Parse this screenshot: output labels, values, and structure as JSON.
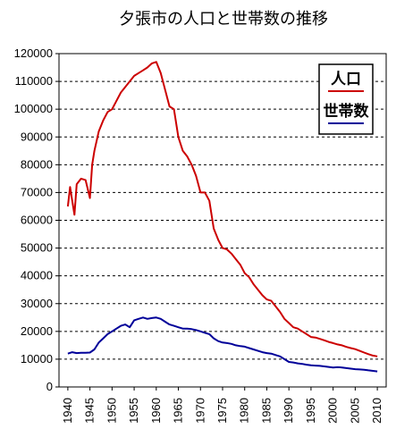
{
  "chart_data": {
    "type": "line",
    "title": "夕張市の人口と世帯数の推移",
    "xlabel": "",
    "ylabel": "",
    "xlim": [
      1938,
      2012
    ],
    "ylim": [
      0,
      120000
    ],
    "y_ticks": [
      "0",
      "10000",
      "20000",
      "30000",
      "40000",
      "50000",
      "60000",
      "70000",
      "80000",
      "90000",
      "100000",
      "110000",
      "120000"
    ],
    "y_tick_values": [
      0,
      10000,
      20000,
      30000,
      40000,
      50000,
      60000,
      70000,
      80000,
      90000,
      100000,
      110000,
      120000
    ],
    "x_ticks": [
      "1940",
      "1945",
      "1950",
      "1955",
      "1960",
      "1965",
      "1970",
      "1975",
      "1980",
      "1985",
      "1990",
      "1995",
      "2000",
      "2005",
      "2010"
    ],
    "x_tick_values": [
      1940,
      1945,
      1950,
      1955,
      1960,
      1965,
      1970,
      1975,
      1980,
      1985,
      1990,
      1995,
      2000,
      2005,
      2010
    ],
    "grid": "horizontal dashed",
    "legend_position": "top-right",
    "series": [
      {
        "name": "人口",
        "color": "#cc0000",
        "x": [
          1940,
          1940.5,
          1941,
          1941.5,
          1942,
          1943,
          1944,
          1944.7,
          1945,
          1945.5,
          1946,
          1947,
          1948,
          1949,
          1950,
          1951,
          1952,
          1953,
          1954,
          1955,
          1956,
          1957,
          1958,
          1959,
          1960,
          1961,
          1962,
          1963,
          1964,
          1965,
          1966,
          1967,
          1968,
          1969,
          1970,
          1971,
          1972,
          1973,
          1974,
          1975,
          1976,
          1977,
          1978,
          1979,
          1980,
          1981,
          1982,
          1983,
          1984,
          1985,
          1986,
          1987,
          1988,
          1989,
          1990,
          1991,
          1992,
          1993,
          1994,
          1995,
          1996,
          1997,
          1998,
          1999,
          2000,
          2001,
          2002,
          2003,
          2004,
          2005,
          2006,
          2007,
          2008,
          2009,
          2010
        ],
        "values": [
          65000,
          72000,
          67000,
          62000,
          73000,
          75000,
          74500,
          70000,
          68000,
          80000,
          85000,
          92000,
          96000,
          99000,
          100000,
          103000,
          106000,
          108000,
          110000,
          112000,
          113000,
          114000,
          115000,
          116500,
          117000,
          113000,
          107000,
          101000,
          100000,
          90000,
          85000,
          83000,
          80000,
          76000,
          70000,
          70000,
          67000,
          57000,
          53000,
          50000,
          49500,
          48000,
          46000,
          44000,
          41000,
          39500,
          37000,
          35000,
          33000,
          31500,
          31000,
          29000,
          27000,
          24500,
          23000,
          21500,
          21000,
          20000,
          19000,
          18000,
          17800,
          17300,
          16800,
          16200,
          15800,
          15300,
          15000,
          14400,
          14000,
          13600,
          13000,
          12400,
          11800,
          11300,
          11000
        ]
      },
      {
        "name": "世帯数",
        "color": "#000099",
        "x": [
          1940,
          1941,
          1942,
          1943,
          1944,
          1945,
          1946,
          1947,
          1948,
          1949,
          1950,
          1951,
          1952,
          1953,
          1954,
          1955,
          1956,
          1957,
          1958,
          1959,
          1960,
          1961,
          1962,
          1963,
          1964,
          1965,
          1966,
          1967,
          1968,
          1969,
          1970,
          1971,
          1972,
          1973,
          1974,
          1975,
          1976,
          1977,
          1978,
          1979,
          1980,
          1981,
          1982,
          1983,
          1984,
          1985,
          1986,
          1987,
          1988,
          1989,
          1990,
          1991,
          1992,
          1993,
          1994,
          1995,
          1996,
          1997,
          1998,
          1999,
          2000,
          2001,
          2002,
          2003,
          2004,
          2005,
          2006,
          2007,
          2008,
          2009,
          2010
        ],
        "values": [
          12000,
          12500,
          12200,
          12300,
          12300,
          12400,
          13500,
          16000,
          17500,
          19000,
          20000,
          21000,
          22000,
          22500,
          21500,
          24000,
          24500,
          25000,
          24500,
          24800,
          25000,
          24500,
          23500,
          22500,
          22000,
          21500,
          21000,
          21000,
          20800,
          20500,
          20000,
          19500,
          19000,
          17500,
          16500,
          16000,
          15800,
          15500,
          15000,
          14700,
          14500,
          14000,
          13500,
          13000,
          12500,
          12200,
          12000,
          11500,
          11000,
          10000,
          9000,
          8800,
          8500,
          8300,
          8000,
          7800,
          7700,
          7600,
          7400,
          7200,
          7000,
          7100,
          7000,
          6800,
          6600,
          6400,
          6300,
          6200,
          6000,
          5800,
          5600
        ]
      }
    ]
  }
}
